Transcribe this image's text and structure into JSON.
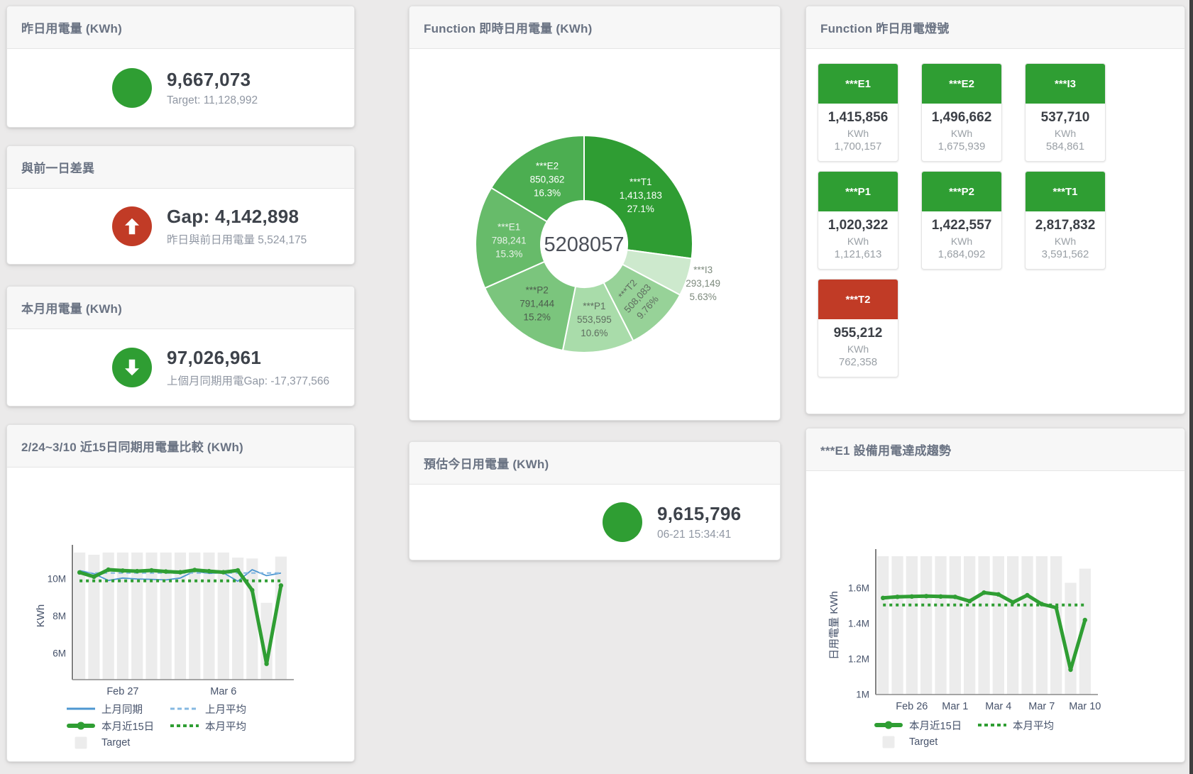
{
  "colors": {
    "green": "#2f9e33",
    "red": "#c13b26",
    "blue": "#4e97d1",
    "blue_light": "#85b8e2",
    "bar": "#ececec",
    "title_text": "#6a7383",
    "value_text": "#3d424a",
    "sub_text": "#9097a3",
    "axis_text": "#47536b",
    "edge_line": "#3f3f3f"
  },
  "cards": {
    "yesterday": {
      "title": "昨日用電量 (KWh)",
      "value": "9,667,073",
      "sub": "Target: 11,128,992"
    },
    "day_gap": {
      "title": "與前一日差異",
      "value": "Gap: 4,142,898",
      "sub": "昨日與前日用電量 5,524,175"
    },
    "month": {
      "title": "本月用電量 (KWh)",
      "value": "97,026,961",
      "sub": "上個月同期用電Gap: -17,377,566"
    },
    "estimate": {
      "title": "預估今日用電量 (KWh)",
      "value": "9,615,796",
      "sub": "06-21 15:34:41"
    },
    "lights": {
      "title": "Function 昨日用電燈號",
      "unit": "KWh",
      "tiles": [
        {
          "name": "***E1",
          "value": "1,415,856",
          "target": "1,700,157",
          "status": "green"
        },
        {
          "name": "***E2",
          "value": "1,496,662",
          "target": "1,675,939",
          "status": "green"
        },
        {
          "name": "***I3",
          "value": "537,710",
          "target": "584,861",
          "status": "green"
        },
        {
          "name": "***P1",
          "value": "1,020,322",
          "target": "1,121,613",
          "status": "green"
        },
        {
          "name": "***P2",
          "value": "1,422,557",
          "target": "1,684,092",
          "status": "green"
        },
        {
          "name": "***T1",
          "value": "2,817,832",
          "target": "3,591,562",
          "status": "green"
        },
        {
          "name": "***T2",
          "value": "955,212",
          "target": "762,358",
          "status": "red"
        }
      ]
    }
  },
  "chart_data": [
    {
      "type": "pie",
      "title": "Function 即時日用電量 (KWh)",
      "center_total": "5208057",
      "slices": [
        {
          "name": "***T1",
          "value": 1413183,
          "display": "1,413,183",
          "pct": "27.1%",
          "color": "#2f9d33",
          "label_color": "#ffffff"
        },
        {
          "name": "***I3",
          "value": 293149,
          "display": "293,149",
          "pct": "5.63%",
          "color": "#cde9cd",
          "label_color": "#7d8a7d",
          "outside": true
        },
        {
          "name": "***T2",
          "value": 508083,
          "display": "508,083",
          "pct": "9.76%",
          "color": "#97d298",
          "label_color": "#5f6e60",
          "rotate": -48
        },
        {
          "name": "***P1",
          "value": 553595,
          "display": "553,595",
          "pct": "10.6%",
          "color": "#a9dcaa",
          "label_color": "#5f6e60"
        },
        {
          "name": "***P2",
          "value": 791444,
          "display": "791,444",
          "pct": "15.2%",
          "color": "#7bc57d",
          "label_color": "#4c5c4d"
        },
        {
          "name": "***E1",
          "value": 798241,
          "display": "798,241",
          "pct": "15.3%",
          "color": "#67bb6a",
          "label_color": "#e9f2e9"
        },
        {
          "name": "***E2",
          "value": 850362,
          "display": "850,362",
          "pct": "16.3%",
          "color": "#4cae51",
          "label_color": "#ffffff"
        }
      ]
    },
    {
      "type": "line",
      "title": "2/24~3/10 近15日同期用電量比較 (KWh)",
      "ylabel": "KWh",
      "ylim": [
        4.6,
        11.45
      ],
      "yticks": [
        {
          "v": 6,
          "label": "6M"
        },
        {
          "v": 8,
          "label": "8M"
        },
        {
          "v": 10,
          "label": "10M"
        }
      ],
      "xticks": [
        {
          "i": 3,
          "label": "Feb 27"
        },
        {
          "i": 10,
          "label": "Mar 6"
        }
      ],
      "bar_color": "#ececec",
      "target_bars": [
        11.42,
        11.3,
        11.42,
        11.42,
        11.42,
        11.42,
        11.42,
        11.42,
        11.42,
        11.42,
        11.42,
        11.15,
        11.1,
        8.72,
        11.2
      ],
      "series": [
        {
          "name": "上月同期",
          "style": "solid",
          "color": "#4e97d1",
          "width": 1.8,
          "values": [
            10.45,
            10.28,
            9.92,
            10.05,
            10.0,
            9.98,
            9.95,
            10.05,
            10.42,
            10.3,
            10.33,
            9.88,
            10.5,
            10.18,
            10.32
          ]
        },
        {
          "name": "上月平均",
          "style": "dashed",
          "color": "#85b8e2",
          "width": 2.2,
          "constant": 10.32
        },
        {
          "name": "本月平均",
          "style": "dotted",
          "color": "#2f9e33",
          "width": 4,
          "constant": 9.9
        },
        {
          "name": "本月近15日",
          "style": "solid",
          "color": "#2f9e33",
          "width": 5,
          "dots": true,
          "values": [
            10.35,
            10.12,
            10.5,
            10.45,
            10.42,
            10.46,
            10.4,
            10.36,
            10.48,
            10.42,
            10.36,
            10.46,
            9.4,
            5.45,
            9.65
          ]
        }
      ],
      "legend": [
        "上月同期",
        "上月平均",
        "本月近15日",
        "本月平均",
        "Target"
      ]
    },
    {
      "type": "line",
      "title": "***E1 設備用電達成趨勢",
      "ylabel": "日用電量 KWh",
      "ylim": [
        1.0,
        1.78
      ],
      "yticks": [
        {
          "v": 1,
          "label": "1M"
        },
        {
          "v": 1.2,
          "label": "1.2M"
        },
        {
          "v": 1.4,
          "label": "1.4M"
        },
        {
          "v": 1.6,
          "label": "1.6M"
        }
      ],
      "xticks": [
        {
          "i": 2,
          "label": "Feb 26"
        },
        {
          "i": 5,
          "label": "Mar 1"
        },
        {
          "i": 8,
          "label": "Mar 4"
        },
        {
          "i": 11,
          "label": "Mar 7"
        },
        {
          "i": 14,
          "label": "Mar 10"
        }
      ],
      "bar_color": "#ececec",
      "target_bars": [
        1.78,
        1.78,
        1.78,
        1.78,
        1.78,
        1.78,
        1.78,
        1.78,
        1.78,
        1.78,
        1.78,
        1.78,
        1.78,
        1.63,
        1.71
      ],
      "series": [
        {
          "name": "本月平均",
          "style": "dotted",
          "color": "#2f9e33",
          "width": 4,
          "constant": 1.505
        },
        {
          "name": "本月近15日",
          "style": "solid",
          "color": "#2f9e33",
          "width": 5,
          "dots": true,
          "values": [
            1.545,
            1.551,
            1.553,
            1.555,
            1.553,
            1.551,
            1.527,
            1.575,
            1.565,
            1.52,
            1.56,
            1.51,
            1.49,
            1.14,
            1.42
          ]
        }
      ],
      "legend": [
        "本月近15日",
        "本月平均",
        "Target"
      ]
    }
  ]
}
